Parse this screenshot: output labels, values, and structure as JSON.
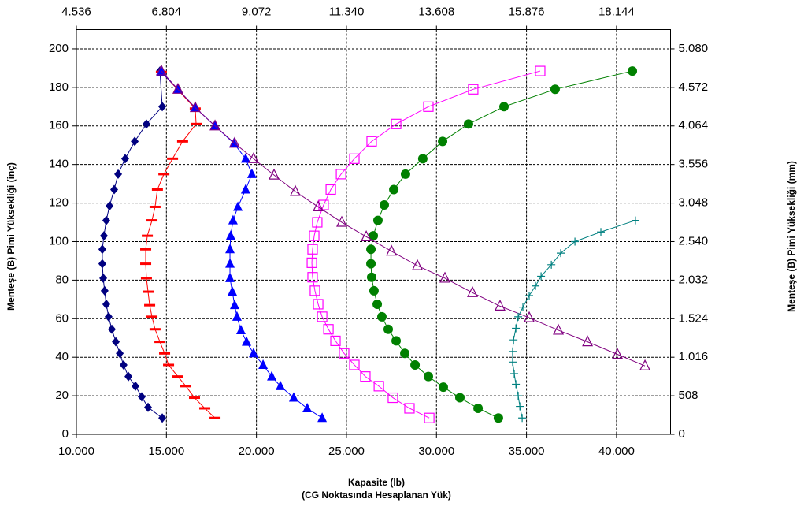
{
  "chart_data": {
    "type": "scatter",
    "xlabel": "Kapasite (lb)",
    "xlabel2": "(CG Noktasında Hesaplanan Yük)",
    "ylabel": "Menteşe (B) Pimi Yüksekliği (inç)",
    "y2label": "Menteşe (B) Pimi Yüksekliği (mm)",
    "xlim": [
      10000,
      43000
    ],
    "xticks": [
      {
        "value": 10000,
        "label": "10.000"
      },
      {
        "value": 15000,
        "label": "15.000"
      },
      {
        "value": 20000,
        "label": "20.000"
      },
      {
        "value": 25000,
        "label": "25.000"
      },
      {
        "value": 30000,
        "label": "30.000"
      },
      {
        "value": 35000,
        "label": "35.000"
      },
      {
        "value": 40000,
        "label": "40.000"
      }
    ],
    "x2lim": [
      4.536,
      19.5048
    ],
    "x2ticks": [
      4.536,
      6.804,
      9.072,
      {
        "value": 11.34,
        "label": "11.340"
      },
      13.608,
      15.876,
      18.144
    ],
    "ylim": [
      0,
      210
    ],
    "yticks": [
      0,
      20,
      40,
      60,
      80,
      100,
      120,
      140,
      160,
      180,
      200
    ],
    "y2lim": [
      0,
      5334
    ],
    "y2ticks": [
      0,
      508,
      {
        "value": 1016,
        "label": "1.016"
      },
      {
        "value": 1524,
        "label": "1.524"
      },
      {
        "value": 2032,
        "label": "2.032"
      },
      {
        "value": 2540,
        "label": "2.540"
      },
      {
        "value": 3048,
        "label": "3.048"
      },
      {
        "value": 3556,
        "label": "3.556"
      },
      {
        "value": 4064,
        "label": "4.064"
      },
      {
        "value": 4572,
        "label": "4.572"
      },
      {
        "value": 5080,
        "label": "5.080"
      }
    ],
    "grid": true,
    "series": [
      {
        "color": "#000080",
        "marker": "diamond",
        "x": [
          14640,
          14770,
          13890,
          13240,
          12710,
          12320,
          12100,
          11840,
          11660,
          11530,
          11440,
          11440,
          11490,
          11570,
          11660,
          11790,
          11970,
          12190,
          12410,
          12620,
          12890,
          13280,
          13630,
          13980,
          14770
        ],
        "values": [
          188.5,
          170,
          161,
          152,
          143,
          135,
          127,
          118.5,
          111,
          103,
          96,
          88.5,
          81,
          74.5,
          67.5,
          61,
          54.5,
          48,
          42,
          36,
          30,
          25,
          19.5,
          14,
          8.5
        ]
      },
      {
        "color": "#ff0000",
        "marker": "dash",
        "x": [
          14720,
          16600,
          16650,
          15900,
          15340,
          14860,
          14500,
          14370,
          14200,
          13940,
          13850,
          13850,
          13890,
          13980,
          14070,
          14200,
          14370,
          14640,
          14900,
          15120,
          15640,
          16080,
          16560,
          17130,
          17700
        ],
        "values": [
          188,
          169,
          161,
          152,
          143,
          135,
          127,
          118,
          111,
          103,
          96,
          88.5,
          81,
          74,
          67,
          61,
          54.5,
          48,
          42,
          36,
          30,
          25,
          19,
          13.5,
          8.5
        ]
      },
      {
        "color": "#0000ff",
        "marker": "triangle",
        "x": [
          14720,
          15640,
          16600,
          17700,
          18750,
          19400,
          19750,
          19400,
          18970,
          18700,
          18570,
          18530,
          18530,
          18530,
          18660,
          18790,
          18920,
          19140,
          19450,
          19840,
          20370,
          20850,
          21330,
          22070,
          22820,
          23650
        ],
        "values": [
          188,
          179,
          169.5,
          160,
          151,
          143,
          135,
          127,
          118,
          111,
          103,
          96,
          88.5,
          81,
          74,
          67,
          61,
          54,
          48,
          42,
          36,
          30,
          25,
          19,
          13.5,
          8.5
        ]
      },
      {
        "color": "#ff00ff",
        "marker": "square-open",
        "x": [
          35760,
          32040,
          29550,
          27760,
          26400,
          25440,
          24700,
          24130,
          23730,
          23380,
          23210,
          23120,
          23080,
          23120,
          23250,
          23430,
          23650,
          24000,
          24390,
          24870,
          25440,
          26050,
          26800,
          27580,
          28500,
          29600
        ],
        "values": [
          188.5,
          179,
          170,
          161,
          152,
          143,
          135,
          127,
          119,
          110,
          103,
          96,
          89,
          81.5,
          74.5,
          67.5,
          61,
          54.5,
          48.5,
          42,
          36,
          30,
          25,
          19,
          13.5,
          8.5
        ]
      },
      {
        "color": "#008000",
        "marker": "circle",
        "x": [
          40880,
          36590,
          33750,
          31780,
          30340,
          29240,
          28280,
          27630,
          27100,
          26750,
          26490,
          26360,
          26360,
          26400,
          26530,
          26710,
          26970,
          27320,
          27760,
          28240,
          28810,
          29550,
          30380,
          31300,
          32310,
          33440
        ],
        "values": [
          188.5,
          179,
          170,
          161,
          152,
          143,
          135,
          127,
          119,
          111,
          103,
          96,
          88.5,
          81.5,
          74.5,
          67.5,
          61,
          54.5,
          48.5,
          42,
          36,
          30,
          24.5,
          19,
          13.5,
          8.5
        ]
      },
      {
        "color": "#800080",
        "marker": "triangle-open",
        "x": [
          14720,
          15640,
          16600,
          17700,
          18790,
          19840,
          20980,
          22160,
          23430,
          24740,
          26100,
          27500,
          28940,
          30470,
          32000,
          33530,
          35150,
          36770,
          38390,
          40050,
          41580
        ],
        "values": [
          188.5,
          179,
          169.5,
          160,
          151,
          143,
          134.5,
          126,
          118,
          110,
          102.5,
          95,
          87.5,
          81,
          73.5,
          66.5,
          60.5,
          54,
          48,
          41.5,
          35.5
        ]
      },
      {
        "color": "#008080",
        "marker": "plus",
        "x": [
          34760,
          34630,
          34540,
          34410,
          34320,
          34230,
          34230,
          34280,
          34410,
          34540,
          34800,
          35150,
          35500,
          35810,
          36380,
          36900,
          37690,
          39130,
          41050
        ],
        "values": [
          8.5,
          14.5,
          20,
          26,
          31.5,
          37.5,
          43,
          49,
          55,
          61,
          66,
          72,
          77,
          82,
          88,
          94,
          100,
          105,
          111
        ]
      }
    ]
  }
}
